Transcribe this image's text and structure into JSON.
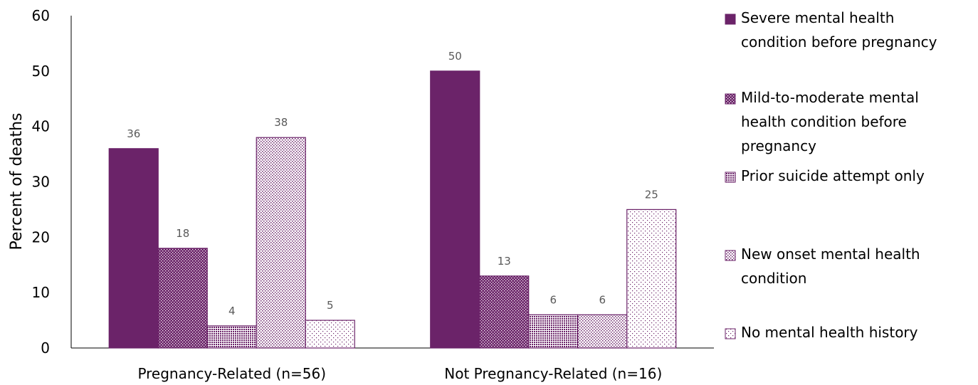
{
  "chart_data": {
    "type": "bar",
    "title": "",
    "xlabel": "",
    "ylabel": "Percent of deaths",
    "ylim": [
      0,
      60
    ],
    "yticks": [
      0,
      10,
      20,
      30,
      40,
      50,
      60
    ],
    "grid": false,
    "legend_position": "right",
    "categories": [
      "Pregnancy-Related (n=56)",
      "Not Pregnancy-Related (n=16)"
    ],
    "series": [
      {
        "name": "Severe mental health condition before pregnancy",
        "legend_lines": [
          "Severe mental health",
          "condition before pregnancy"
        ],
        "pattern": "solid",
        "values": [
          36,
          50
        ]
      },
      {
        "name": "Mild-to-moderate mental health condition before pregnancy",
        "legend_lines": [
          "Mild-to-moderate mental",
          "health condition before",
          "pregnancy"
        ],
        "pattern": "dense-dots",
        "values": [
          18,
          13
        ]
      },
      {
        "name": "Prior suicide attempt only",
        "legend_lines": [
          "Prior suicide attempt only"
        ],
        "pattern": "grid",
        "values": [
          4,
          6
        ]
      },
      {
        "name": "New onset mental health condition",
        "legend_lines": [
          "New onset mental health",
          "condition"
        ],
        "pattern": "light-dots",
        "values": [
          38,
          6
        ]
      },
      {
        "name": "No mental health history",
        "legend_lines": [
          "No mental health history"
        ],
        "pattern": "sparse-dots",
        "values": [
          5,
          25
        ]
      }
    ],
    "colors": {
      "primary": "#6b2369",
      "axis": "#000000",
      "data_label": "#595959"
    }
  }
}
